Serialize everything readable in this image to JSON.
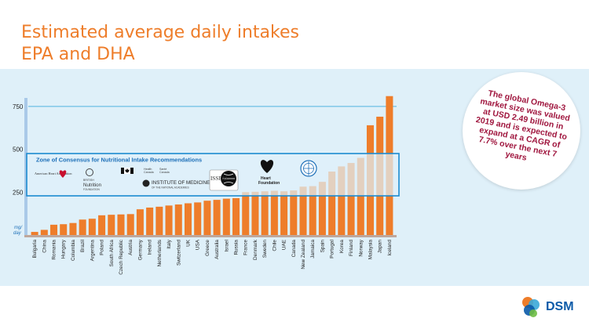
{
  "title": {
    "line1": "Estimated average daily intakes",
    "line2": "EPA and DHA"
  },
  "chart_data": {
    "type": "bar",
    "ylim": [
      0,
      900
    ],
    "yticks": [
      250,
      500,
      750
    ],
    "ylabel": "mg/ day",
    "categories": [
      "Bulgaria",
      "China",
      "Romania",
      "Hungary",
      "Columbia",
      "Brazil",
      "Argentina",
      "Poland",
      "South Africa",
      "Czech Republic",
      "Austria",
      "Germany",
      "Ireland",
      "Netherlands",
      "Italy",
      "Switzerland",
      "UK",
      "USA",
      "Greece",
      "Australia",
      "Israel",
      "Russia",
      "France",
      "Denmark",
      "Sweden",
      "Chile",
      "UAE",
      "Canada",
      "New Zealand",
      "Jamaica",
      "Spain",
      "Portugal",
      "Korea",
      "Finland",
      "Norway",
      "Malaysia",
      "Japan",
      "Iceland"
    ],
    "values": [
      18,
      30,
      60,
      63,
      70,
      90,
      95,
      115,
      118,
      120,
      122,
      150,
      160,
      165,
      172,
      178,
      185,
      190,
      200,
      205,
      212,
      215,
      250,
      252,
      255,
      258,
      255,
      260,
      282,
      285,
      310,
      370,
      400,
      420,
      450,
      640,
      690,
      810
    ],
    "bar_color": "#ee7d2a",
    "reference_line": 750,
    "consensus_zone": {
      "label": "Zone of Consensus for Nutritional Intake Recommendations",
      "range": [
        250,
        500
      ]
    }
  },
  "logos": {
    "aha": "American Heart Association",
    "bnf_line1": "BRITISH",
    "bnf_line2": "Nutrition",
    "bnf_line3": "FOUNDATION",
    "hc_line1": "Health",
    "hc_line2": "Canada",
    "sc_line1": "Santé",
    "sc_line2": "Canada",
    "iom_line1": "INSTITUTE OF MEDICINE",
    "iom_line2": "OF THE NATIONAL ACADEMIES",
    "issfal": "ISSFAL",
    "hf_line1": "Heart",
    "hf_line2": "Foundation"
  },
  "callout": {
    "text": "The global Omega-3 market size was valued at USD 2.49 billion in 2019 and is expected to expand at a CAGR of 7.7% over the next 7 years"
  },
  "brand": {
    "name": "DSM",
    "orange": "#ee7d2a",
    "blue": "#0a5aa8"
  }
}
